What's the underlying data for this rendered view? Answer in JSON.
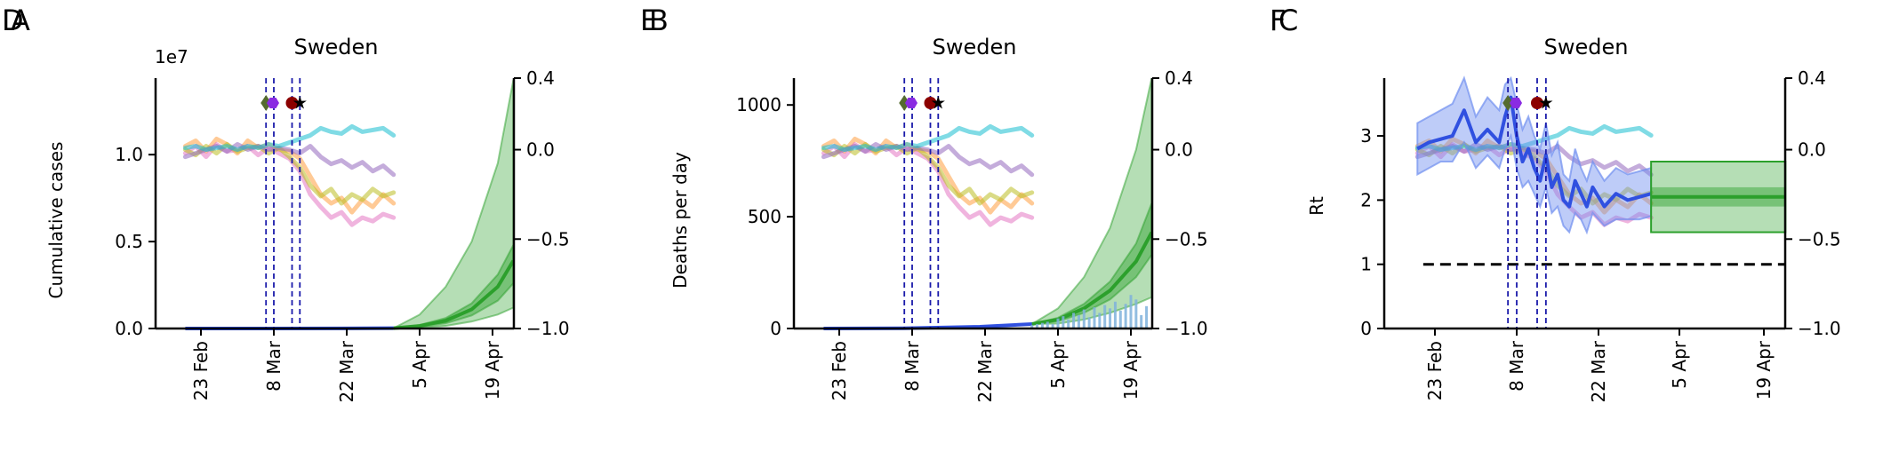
{
  "panels": [
    {
      "letter_back": "D",
      "letter_front": "A",
      "title": "Sweden",
      "ylabel": "Cumulative cases",
      "offset_text": "1e7",
      "left_ticks": [
        "0.0",
        "0.5",
        "1.0"
      ],
      "right_ticks": [
        "0.4",
        "0.0",
        "−0.5",
        "−1.0"
      ],
      "x_ticks": [
        "23 Feb",
        "8 Mar",
        "22 Mar",
        "5 Apr",
        "19 Apr"
      ],
      "has_bars": false,
      "has_rt": false
    },
    {
      "letter_back": "E",
      "letter_front": "B",
      "title": "Sweden",
      "ylabel": "Deaths per day",
      "offset_text": "",
      "left_ticks": [
        "0",
        "500",
        "1000"
      ],
      "right_ticks": [
        "0.4",
        "0.0",
        "−0.5",
        "−1.0"
      ],
      "x_ticks": [
        "23 Feb",
        "8 Mar",
        "22 Mar",
        "5 Apr",
        "19 Apr"
      ],
      "has_bars": true,
      "has_rt": false
    },
    {
      "letter_back": "F",
      "letter_front": "C",
      "title": "Sweden",
      "ylabel": "Rt",
      "offset_text": "",
      "left_ticks": [
        "0",
        "1",
        "2",
        "3"
      ],
      "right_ticks": [
        "0.4",
        "0.0",
        "−0.5",
        "−1.0"
      ],
      "x_ticks": [
        "23 Feb",
        "8 Mar",
        "22 Mar",
        "5 Apr",
        "19 Apr"
      ],
      "has_bars": false,
      "has_rt": true
    }
  ],
  "colors": {
    "forecast": "#2ca02c",
    "observed": "#3050e0",
    "rt_band": "#6f8ff0",
    "bars": "#7fb1dc",
    "intervention_lines": "#1a1aaa",
    "mobility": [
      "#ff9f40",
      "#e377c2",
      "#bcbd22",
      "#9467bd",
      "#17becf"
    ],
    "markers": [
      "#556b2f",
      "#8a2be2",
      "#8b0000",
      "#000000"
    ]
  },
  "chart_data": [
    {
      "type": "area",
      "title": "Sweden",
      "ylabel": "Cumulative cases",
      "x_tick_dates": [
        "23 Feb",
        "8 Mar",
        "22 Mar",
        "5 Apr",
        "19 Apr"
      ],
      "y_left_range": [
        0,
        14400000
      ],
      "y_left_ticks": [
        0,
        5000000,
        10000000
      ],
      "y_right_range": [
        -1.0,
        0.4
      ],
      "y_right_ticks": [
        0.4,
        0.0,
        -0.5,
        -1.0
      ],
      "observed_cumulative": {
        "x_days": [
          0,
          15,
          30,
          40
        ],
        "values": [
          0,
          1000,
          6000,
          20000
        ]
      },
      "forecast": {
        "x_days": [
          40,
          45,
          50,
          55,
          60,
          63
        ],
        "mean": [
          20000,
          150000,
          450000,
          1100000,
          2400000,
          3900000
        ],
        "inner_low": [
          20000,
          100000,
          300000,
          750000,
          1600000,
          2600000
        ],
        "inner_high": [
          20000,
          200000,
          600000,
          1450000,
          3100000,
          4800000
        ],
        "outer_low": [
          20000,
          60000,
          150000,
          400000,
          800000,
          1200000
        ],
        "outer_high": [
          20000,
          800000,
          2400000,
          5000000,
          9500000,
          14300000
        ]
      },
      "mobility_x_days": [
        0,
        2,
        4,
        6,
        8,
        10,
        12,
        14,
        16,
        18,
        20,
        22,
        24,
        26,
        28,
        30,
        32,
        34,
        36,
        38,
        40
      ],
      "mobility_series": [
        {
          "values": [
            0.02,
            0.05,
            -0.01,
            0.06,
            0.03,
            -0.02,
            0.05,
            0.01,
            0.03,
            0.0,
            -0.01,
            -0.05,
            -0.15,
            -0.25,
            -0.3,
            -0.27,
            -0.35,
            -0.28,
            -0.32,
            -0.25,
            -0.3
          ]
        },
        {
          "values": [
            -0.02,
            0.02,
            -0.04,
            0.03,
            -0.01,
            0.0,
            0.02,
            -0.03,
            0.01,
            -0.02,
            -0.05,
            -0.12,
            -0.25,
            -0.32,
            -0.38,
            -0.35,
            -0.42,
            -0.38,
            -0.4,
            -0.36,
            -0.38
          ]
        },
        {
          "values": [
            0.0,
            -0.03,
            0.02,
            -0.02,
            0.03,
            -0.01,
            0.01,
            0.02,
            -0.02,
            0.01,
            -0.04,
            -0.1,
            -0.2,
            -0.26,
            -0.22,
            -0.3,
            -0.25,
            -0.28,
            -0.22,
            -0.26,
            -0.24
          ]
        },
        {
          "values": [
            -0.04,
            -0.02,
            0.0,
            0.02,
            -0.01,
            0.03,
            0.0,
            0.02,
            0.0,
            0.01,
            0.0,
            -0.02,
            0.02,
            -0.04,
            -0.08,
            -0.06,
            -0.1,
            -0.07,
            -0.12,
            -0.09,
            -0.14
          ]
        },
        {
          "values": [
            0.01,
            0.02,
            0.0,
            0.01,
            0.02,
            0.0,
            0.02,
            0.01,
            0.03,
            0.02,
            0.04,
            0.06,
            0.08,
            0.12,
            0.1,
            0.09,
            0.13,
            0.1,
            0.11,
            0.12,
            0.08
          ]
        }
      ],
      "interventions_x_days": [
        15.5,
        17,
        20.5,
        22
      ]
    },
    {
      "type": "area",
      "title": "Sweden",
      "ylabel": "Deaths per day",
      "x_tick_dates": [
        "23 Feb",
        "8 Mar",
        "22 Mar",
        "5 Apr",
        "19 Apr"
      ],
      "y_left_range": [
        0,
        1120
      ],
      "y_left_ticks": [
        0,
        500,
        1000
      ],
      "y_right_range": [
        -1.0,
        0.4
      ],
      "y_right_ticks": [
        0.4,
        0.0,
        -0.5,
        -1.0
      ],
      "observed_daily": {
        "x_days": [
          0,
          15,
          30,
          40
        ],
        "values": [
          0,
          1,
          8,
          20
        ]
      },
      "forecast": {
        "x_days": [
          40,
          45,
          50,
          55,
          60,
          63
        ],
        "mean": [
          20,
          40,
          90,
          170,
          300,
          430
        ],
        "inner_low": [
          20,
          32,
          70,
          130,
          230,
          330
        ],
        "inner_high": [
          20,
          48,
          110,
          210,
          380,
          560
        ],
        "outer_low": [
          20,
          22,
          40,
          70,
          110,
          140
        ],
        "outer_high": [
          20,
          90,
          230,
          450,
          800,
          1120
        ]
      },
      "reported_deaths": {
        "x_days": [
          40,
          41,
          42,
          43,
          44,
          45,
          46,
          47,
          48,
          49,
          50,
          51,
          52,
          53,
          54,
          55,
          56,
          57,
          58,
          59,
          60,
          61,
          62
        ],
        "values": [
          15,
          20,
          25,
          30,
          20,
          45,
          55,
          40,
          70,
          60,
          85,
          50,
          95,
          70,
          105,
          90,
          120,
          80,
          110,
          150,
          130,
          60,
          100
        ]
      },
      "mobility_x_days": [
        0,
        2,
        4,
        6,
        8,
        10,
        12,
        14,
        16,
        18,
        20,
        22,
        24,
        26,
        28,
        30,
        32,
        34,
        36,
        38,
        40
      ],
      "mobility_series": [
        {
          "values": [
            0.02,
            0.05,
            -0.01,
            0.06,
            0.03,
            -0.02,
            0.05,
            0.01,
            0.03,
            0.0,
            -0.01,
            -0.05,
            -0.15,
            -0.25,
            -0.3,
            -0.27,
            -0.35,
            -0.28,
            -0.32,
            -0.25,
            -0.3
          ]
        },
        {
          "values": [
            -0.02,
            0.02,
            -0.04,
            0.03,
            -0.01,
            0.0,
            0.02,
            -0.03,
            0.01,
            -0.02,
            -0.05,
            -0.12,
            -0.25,
            -0.32,
            -0.38,
            -0.35,
            -0.42,
            -0.38,
            -0.4,
            -0.36,
            -0.38
          ]
        },
        {
          "values": [
            0.0,
            -0.03,
            0.02,
            -0.02,
            0.03,
            -0.01,
            0.01,
            0.02,
            -0.02,
            0.01,
            -0.04,
            -0.1,
            -0.2,
            -0.26,
            -0.22,
            -0.3,
            -0.25,
            -0.28,
            -0.22,
            -0.26,
            -0.24
          ]
        },
        {
          "values": [
            -0.04,
            -0.02,
            0.0,
            0.02,
            -0.01,
            0.03,
            0.0,
            0.02,
            0.0,
            0.01,
            0.0,
            -0.02,
            0.02,
            -0.04,
            -0.08,
            -0.06,
            -0.1,
            -0.07,
            -0.12,
            -0.09,
            -0.14
          ]
        },
        {
          "values": [
            0.01,
            0.02,
            0.0,
            0.01,
            0.02,
            0.0,
            0.02,
            0.01,
            0.03,
            0.02,
            0.04,
            0.06,
            0.08,
            0.12,
            0.1,
            0.09,
            0.13,
            0.1,
            0.11,
            0.12,
            0.08
          ]
        }
      ],
      "interventions_x_days": [
        15.5,
        17,
        20.5,
        22
      ]
    },
    {
      "type": "line",
      "title": "Sweden",
      "ylabel": "Rt",
      "x_tick_dates": [
        "23 Feb",
        "8 Mar",
        "22 Mar",
        "5 Apr",
        "19 Apr"
      ],
      "y_left_range": [
        0,
        3.9
      ],
      "y_left_ticks": [
        0,
        1,
        2,
        3
      ],
      "y_right_range": [
        -1.0,
        0.4
      ],
      "y_right_ticks": [
        0.4,
        0.0,
        -0.5,
        -1.0
      ],
      "reference_line": 1,
      "rt_estimate": {
        "x_days": [
          0,
          2,
          4,
          6,
          8,
          10,
          12,
          14,
          15,
          16,
          17,
          18,
          19,
          20,
          21,
          22,
          23,
          24,
          25,
          26,
          27,
          28,
          29,
          30,
          32,
          34,
          36,
          38,
          40
        ],
        "mean": [
          2.8,
          2.9,
          2.95,
          3.0,
          3.4,
          2.9,
          3.1,
          2.9,
          3.3,
          3.6,
          3.0,
          2.6,
          2.8,
          2.5,
          2.3,
          2.7,
          2.2,
          2.4,
          2.0,
          1.9,
          2.3,
          2.1,
          1.9,
          2.2,
          1.9,
          2.1,
          2.0,
          2.05,
          2.1
        ],
        "low": [
          2.4,
          2.5,
          2.6,
          2.6,
          2.9,
          2.5,
          2.7,
          2.5,
          2.8,
          3.0,
          2.5,
          2.2,
          2.3,
          2.1,
          1.9,
          2.2,
          1.8,
          1.9,
          1.6,
          1.5,
          1.8,
          1.7,
          1.5,
          1.8,
          1.6,
          1.7,
          1.7,
          1.7,
          1.75
        ],
        "high": [
          3.2,
          3.3,
          3.4,
          3.5,
          3.9,
          3.3,
          3.6,
          3.4,
          3.8,
          3.9,
          3.5,
          3.1,
          3.3,
          3.0,
          2.8,
          3.2,
          2.7,
          2.9,
          2.4,
          2.3,
          2.8,
          2.5,
          2.3,
          2.6,
          2.3,
          2.5,
          2.4,
          2.45,
          2.5
        ]
      },
      "rt_forecast": {
        "x_days": [
          40,
          63
        ],
        "mean": 2.05,
        "inner": [
          1.9,
          2.2
        ],
        "outer": [
          1.5,
          2.6
        ]
      },
      "mobility_x_days": [
        0,
        2,
        4,
        6,
        8,
        10,
        12,
        14,
        16,
        18,
        20,
        22,
        24,
        26,
        28,
        30,
        32,
        34,
        36,
        38,
        40
      ],
      "mobility_series": [
        {
          "values": [
            0.02,
            0.05,
            -0.01,
            0.06,
            0.03,
            -0.02,
            0.05,
            0.01,
            0.03,
            0.0,
            -0.01,
            -0.05,
            -0.15,
            -0.25,
            -0.3,
            -0.27,
            -0.35,
            -0.28,
            -0.32,
            -0.25,
            -0.3
          ]
        },
        {
          "values": [
            -0.02,
            0.02,
            -0.04,
            0.03,
            -0.01,
            0.0,
            0.02,
            -0.03,
            0.01,
            -0.02,
            -0.05,
            -0.12,
            -0.25,
            -0.32,
            -0.38,
            -0.35,
            -0.42,
            -0.38,
            -0.4,
            -0.36,
            -0.38
          ]
        },
        {
          "values": [
            0.0,
            -0.03,
            0.02,
            -0.02,
            0.03,
            -0.01,
            0.01,
            0.02,
            -0.02,
            0.01,
            -0.04,
            -0.1,
            -0.2,
            -0.26,
            -0.22,
            -0.3,
            -0.25,
            -0.28,
            -0.22,
            -0.26,
            -0.24
          ]
        },
        {
          "values": [
            -0.04,
            -0.02,
            0.0,
            0.02,
            -0.01,
            0.03,
            0.0,
            0.02,
            0.0,
            0.01,
            0.0,
            -0.02,
            0.02,
            -0.04,
            -0.08,
            -0.06,
            -0.1,
            -0.07,
            -0.12,
            -0.09,
            -0.14
          ]
        },
        {
          "values": [
            0.01,
            0.02,
            0.0,
            0.01,
            0.02,
            0.0,
            0.02,
            0.01,
            0.03,
            0.02,
            0.04,
            0.06,
            0.08,
            0.12,
            0.1,
            0.09,
            0.13,
            0.1,
            0.11,
            0.12,
            0.08
          ]
        }
      ],
      "interventions_x_days": [
        15.5,
        17,
        20.5,
        22
      ]
    }
  ]
}
